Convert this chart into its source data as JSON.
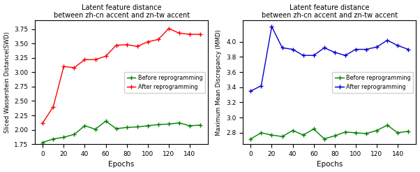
{
  "left": {
    "title": "Latent feature distance\nbetween zh-cn accent and zn-tw accent",
    "xlabel": "Epochs",
    "ylabel": "Sliced Wasserstein Distance(SWD)",
    "epochs": [
      0,
      10,
      20,
      30,
      40,
      50,
      60,
      70,
      80,
      90,
      100,
      110,
      120,
      130,
      140,
      150
    ],
    "before": [
      1.78,
      1.84,
      1.87,
      1.92,
      2.07,
      2.01,
      2.15,
      2.02,
      2.04,
      2.05,
      2.07,
      2.09,
      2.1,
      2.12,
      2.07,
      2.08
    ],
    "after": [
      2.12,
      2.4,
      3.1,
      3.08,
      3.22,
      3.22,
      3.28,
      3.47,
      3.48,
      3.45,
      3.53,
      3.57,
      3.76,
      3.68,
      3.66,
      3.66
    ],
    "before_color": "#008000",
    "after_color": "#ff0000",
    "before_label": "Before reprogramming",
    "after_label": "After reprogramming",
    "ylim": [
      1.75,
      3.9
    ],
    "yticks": [
      1.75,
      2.0,
      2.25,
      2.5,
      2.75,
      3.0,
      3.25,
      3.5,
      3.75
    ],
    "xticks": [
      0,
      20,
      40,
      60,
      80,
      100,
      120,
      140
    ],
    "legend_loc": "center right"
  },
  "right": {
    "title": "Latent feature distance\nbetween zh-cn accent and zn-tw accent",
    "xlabel": "Epochs",
    "ylabel": "Maximum Mean Discrepancy (MMD)",
    "epochs": [
      0,
      10,
      20,
      30,
      40,
      50,
      60,
      70,
      80,
      90,
      100,
      110,
      120,
      130,
      140,
      150
    ],
    "before": [
      2.72,
      2.8,
      2.77,
      2.75,
      2.83,
      2.77,
      2.85,
      2.72,
      2.76,
      2.81,
      2.8,
      2.79,
      2.83,
      2.9,
      2.8,
      2.82
    ],
    "after": [
      3.35,
      3.42,
      4.2,
      3.92,
      3.9,
      3.82,
      3.82,
      3.92,
      3.86,
      3.82,
      3.9,
      3.9,
      3.93,
      4.02,
      3.95,
      3.9
    ],
    "before_color": "#008000",
    "after_color": "#0000cc",
    "before_label": "Before reprogramming",
    "after_label": "After reprogramming",
    "ylim": [
      2.65,
      4.28
    ],
    "yticks": [
      2.8,
      3.0,
      3.2,
      3.4,
      3.6,
      3.8,
      4.0
    ],
    "xticks": [
      0,
      20,
      40,
      60,
      80,
      100,
      120,
      140
    ],
    "legend_loc": "center right"
  }
}
